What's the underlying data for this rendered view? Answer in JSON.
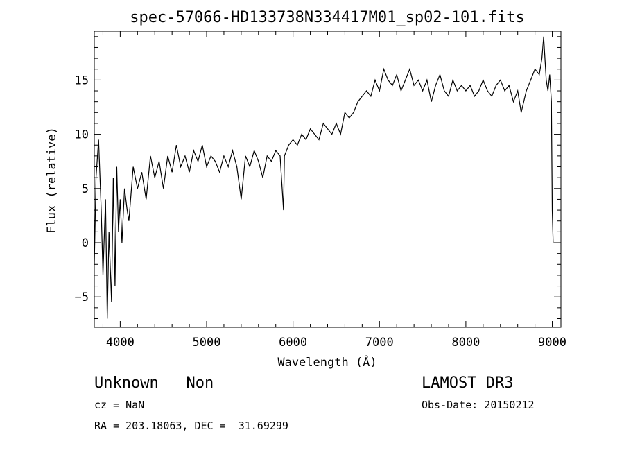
{
  "chart_data": {
    "type": "line",
    "title": "spec-57066-HD133738N334417M01_sp02-101.fits",
    "xlabel": "Wavelength (Å)",
    "ylabel": "Flux (relative)",
    "xlim": [
      3700,
      9100
    ],
    "ylim": [
      -7.8,
      19.5
    ],
    "x_ticks": [
      4000,
      5000,
      6000,
      7000,
      8000,
      9000
    ],
    "x_tick_labels": [
      "4000",
      "5000",
      "6000",
      "7000",
      "8000",
      "9000"
    ],
    "y_ticks": [
      -5,
      0,
      5,
      10,
      15
    ],
    "y_tick_labels": [
      "−5",
      "0",
      "5",
      "10",
      "15"
    ],
    "line_color": "#000000",
    "grid": false,
    "series": [
      {
        "x": [
          3700,
          3720,
          3750,
          3780,
          3800,
          3830,
          3850,
          3870,
          3900,
          3920,
          3940,
          3960,
          3980,
          4000,
          4020,
          4050,
          4080,
          4100,
          4150,
          4200,
          4250,
          4300,
          4350,
          4400,
          4450,
          4500,
          4550,
          4600,
          4650,
          4700,
          4750,
          4800,
          4850,
          4900,
          4950,
          5000,
          5050,
          5100,
          5150,
          5200,
          5250,
          5300,
          5350,
          5400,
          5450,
          5500,
          5550,
          5600,
          5650,
          5700,
          5750,
          5800,
          5850,
          5890,
          5900,
          5950,
          6000,
          6050,
          6100,
          6150,
          6200,
          6250,
          6300,
          6350,
          6400,
          6450,
          6500,
          6550,
          6600,
          6650,
          6700,
          6750,
          6800,
          6850,
          6900,
          6950,
          7000,
          7050,
          7100,
          7150,
          7200,
          7250,
          7300,
          7350,
          7400,
          7450,
          7500,
          7550,
          7600,
          7650,
          7700,
          7750,
          7800,
          7850,
          7900,
          7950,
          8000,
          8050,
          8100,
          8150,
          8200,
          8250,
          8300,
          8350,
          8400,
          8450,
          8500,
          8550,
          8600,
          8640,
          8700,
          8750,
          8800,
          8850,
          8880,
          8900,
          8930,
          8950,
          8970,
          8990,
          9000,
          9010
        ],
        "y": [
          -2,
          6,
          9.5,
          3,
          -3,
          4,
          -7,
          1,
          -5.5,
          6,
          -4,
          7,
          1,
          4,
          0,
          5,
          3,
          2,
          7,
          5,
          6.5,
          4,
          8,
          6,
          7.5,
          5,
          8,
          6.5,
          9,
          7,
          8,
          6.5,
          8.5,
          7.5,
          9,
          7,
          8,
          7.5,
          6.5,
          8,
          7,
          8.5,
          7,
          4,
          8,
          7,
          8.5,
          7.5,
          6,
          8,
          7.5,
          8.5,
          8,
          3,
          8,
          9,
          9.5,
          9,
          10,
          9.5,
          10.5,
          10,
          9.5,
          11,
          10.5,
          10,
          11,
          10,
          12,
          11.5,
          12,
          13,
          13.5,
          14,
          13.5,
          15,
          14,
          16,
          15,
          14.5,
          15.5,
          14,
          15,
          16,
          14.5,
          15,
          14,
          15,
          13,
          14.5,
          15.5,
          14,
          13.5,
          15,
          14,
          14.5,
          14,
          14.5,
          13.5,
          14,
          15,
          14,
          13.5,
          14.5,
          15,
          14,
          14.5,
          13,
          14,
          12,
          14,
          15,
          16,
          15.5,
          17,
          19,
          15,
          14,
          15.5,
          13,
          3,
          0
        ]
      }
    ]
  },
  "footer": {
    "left_line1": "Unknown   Non",
    "left_line2": "cz = NaN",
    "left_line3": "RA = 203.18063, DEC =  31.69299",
    "right_line1": "LAMOST DR3",
    "right_line2": "Obs-Date: 20150212"
  }
}
